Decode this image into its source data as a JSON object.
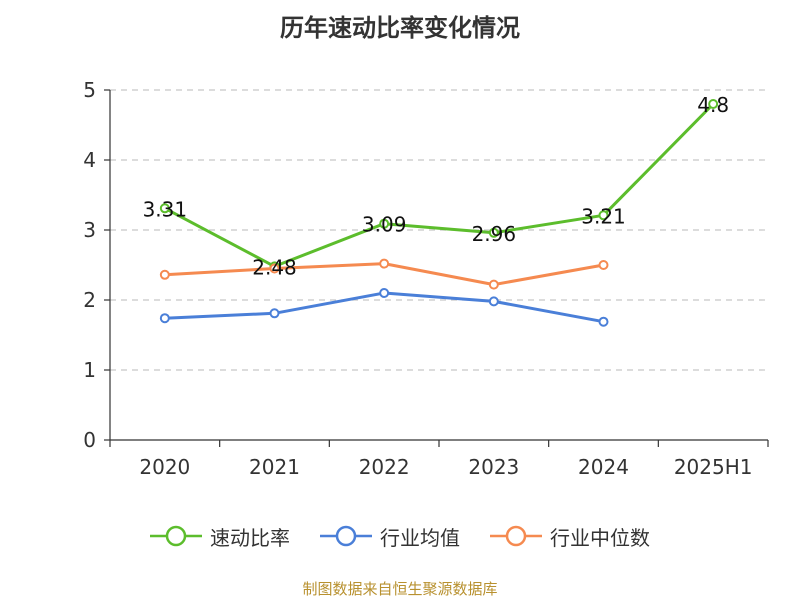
{
  "title": "历年速动比率变化情况",
  "source": "制图数据来自恒生聚源数据库",
  "chart_data": {
    "type": "line",
    "categories": [
      "2020",
      "2021",
      "2022",
      "2023",
      "2024",
      "2025H1"
    ],
    "ylim": [
      0,
      5
    ],
    "yticks": [
      0,
      1,
      2,
      3,
      4,
      5
    ],
    "grid": true,
    "legend_position": "bottom",
    "series": [
      {
        "name": "速动比率",
        "color": "#5cbd2c",
        "show_labels": true,
        "labels": [
          "3.31",
          "2.48",
          "3.09",
          "2.96",
          "3.21",
          "4.8"
        ],
        "values": [
          3.31,
          2.48,
          3.09,
          2.96,
          3.21,
          4.8
        ]
      },
      {
        "name": "行业均值",
        "color": "#4a7fd8",
        "show_labels": false,
        "values": [
          1.74,
          1.81,
          2.1,
          1.98,
          1.69,
          null
        ]
      },
      {
        "name": "行业中位数",
        "color": "#f58a50",
        "show_labels": false,
        "values": [
          2.36,
          2.45,
          2.52,
          2.22,
          2.5,
          null
        ]
      }
    ]
  }
}
